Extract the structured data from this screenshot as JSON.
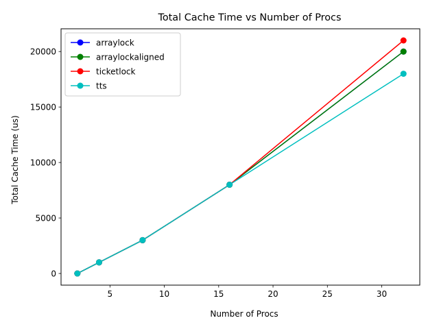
{
  "chart_data": {
    "type": "line",
    "title": "Total Cache Time vs Number of Procs",
    "xlabel": "Number of Procs",
    "ylabel": "Total Cache Time (us)",
    "xlim": [
      0.5,
      33.5
    ],
    "ylim": [
      -1050,
      22050
    ],
    "xticks": [
      5,
      10,
      15,
      20,
      25,
      30
    ],
    "yticks": [
      0,
      5000,
      10000,
      15000,
      20000
    ],
    "x": [
      2,
      4,
      8,
      16,
      32
    ],
    "grid": false,
    "legend_position": "top-left",
    "series": [
      {
        "name": "arraylock",
        "color": "#0000ff",
        "values": [
          0,
          1000,
          3000,
          8000,
          20000
        ]
      },
      {
        "name": "arraylockaligned",
        "color": "#008000",
        "values": [
          0,
          1000,
          3000,
          8000,
          20000
        ]
      },
      {
        "name": "ticketlock",
        "color": "#ff0000",
        "values": [
          0,
          1000,
          3000,
          8000,
          21000
        ]
      },
      {
        "name": "tts",
        "color": "#00bfbf",
        "values": [
          0,
          1000,
          3000,
          8000,
          18000
        ]
      }
    ]
  }
}
